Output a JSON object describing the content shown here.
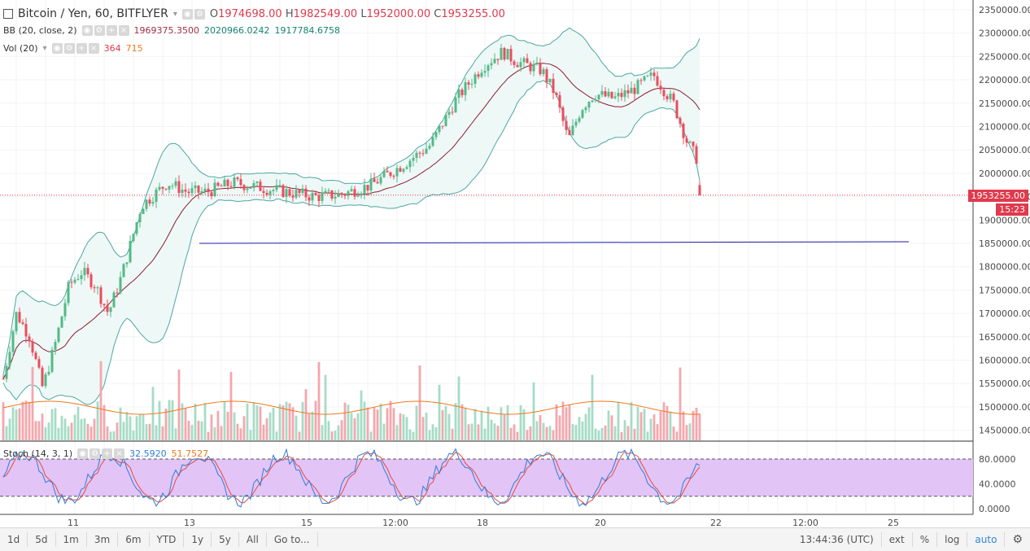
{
  "symbol": {
    "title": "Bitcoin / Yen, 60, BITFLYER",
    "open_label": "O",
    "open": "1974698.00",
    "high_label": "H",
    "high": "1982549.00",
    "low_label": "L",
    "low": "1952000.00",
    "close_label": "C",
    "close": "1953255.00"
  },
  "bb": {
    "label": "BB (20, close, 2)",
    "mid": "1969375.3500",
    "upper": "2020966.0242",
    "lower": "1917784.6758"
  },
  "vol": {
    "label": "Vol (20)",
    "value": "364",
    "ma": "715"
  },
  "stoch": {
    "label": "Stoch (14, 3, 1)",
    "k": "32.5920",
    "d": "51.7527"
  },
  "price_axis": [
    "2350000.00",
    "2300000.00",
    "2250000.00",
    "2200000.00",
    "2150000.00",
    "2100000.00",
    "2050000.00",
    "2000000.00",
    "1950000.00",
    "1900000.00",
    "1850000.00",
    "1800000.00",
    "1750000.00",
    "1700000.00",
    "1650000.00",
    "1600000.00",
    "1550000.00",
    "1500000.00",
    "1450000.00"
  ],
  "current_price": "1953255.00",
  "countdown": "15:23",
  "stoch_axis": [
    "80.0000",
    "40.0000",
    "0.0000"
  ],
  "time_axis": [
    "11",
    "13",
    "15",
    "12:00",
    "18",
    "20",
    "22",
    "12:00",
    "25"
  ],
  "toolbar": {
    "ranges": [
      "1d",
      "5d",
      "1m",
      "3m",
      "6m",
      "YTD",
      "1y",
      "5y",
      "All"
    ],
    "goto": "Go to...",
    "clock": "13:44:36 (UTC)",
    "ext": "ext",
    "percent": "%",
    "log": "log",
    "auto": "auto"
  },
  "colors": {
    "up": "#53b987",
    "down": "#eb4d5c",
    "bb_band": "#4ea7a0",
    "bb_fill": "#eef8f7",
    "trendline": "#1c1ca6",
    "stoch_fill": "#e2c4f7",
    "stoch_k": "#2f7dd3",
    "stoch_d": "#e84b3c"
  },
  "chart_data": {
    "type": "candlestick",
    "trendline": {
      "price": 1850000,
      "from": "13",
      "to": "25"
    },
    "price_range": [
      1430000,
      2360000
    ],
    "stoch_range": [
      -8,
      100
    ],
    "stoch_bands": [
      80,
      20
    ]
  }
}
